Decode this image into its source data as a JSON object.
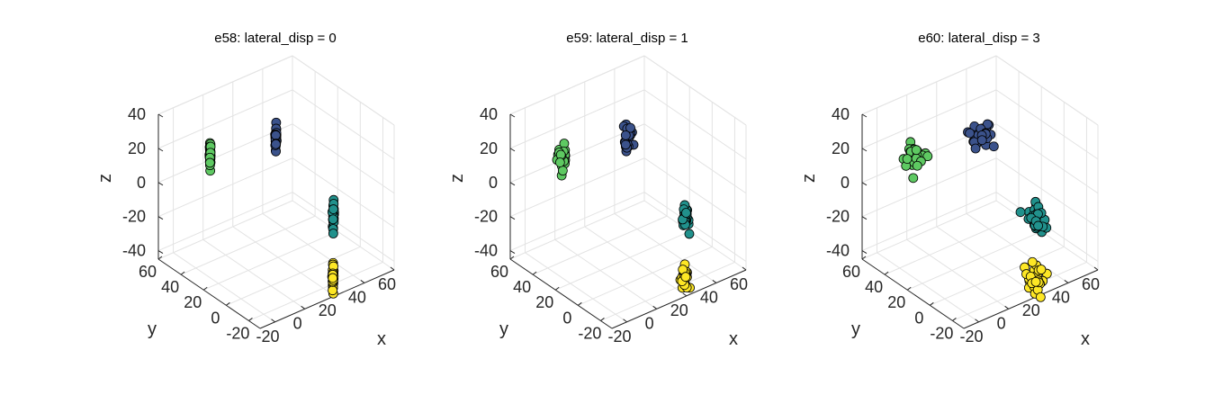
{
  "chart_data": [
    {
      "type": "scatter",
      "title": "e58: lateral_disp = 0",
      "xlabel": "x",
      "ylabel": "y",
      "zlabel": "z",
      "xlim": [
        -30,
        60
      ],
      "ylim": [
        -30,
        60
      ],
      "zlim": [
        -45,
        40
      ],
      "xticks": [
        -20,
        0,
        20,
        40,
        60
      ],
      "xtick_labels": [
        "-20",
        "0",
        "20",
        "40",
        "60"
      ],
      "yticks": [
        -20,
        0,
        20,
        40,
        60
      ],
      "ytick_labels": [
        "-20",
        "0",
        "20",
        "40",
        "60"
      ],
      "zticks": [
        -40,
        -20,
        0,
        20,
        40
      ],
      "ztick_labels": [
        "-40",
        "-20",
        "0",
        "20",
        "40"
      ],
      "grid": true,
      "view": "3d",
      "clusters": [
        {
          "color": "#5ec962",
          "center": [
            -18,
            30,
            25
          ],
          "spread": [
            0.2,
            0.2,
            4
          ],
          "count": 30
        },
        {
          "color": "#3b528b",
          "center": [
            20,
            22,
            25
          ],
          "spread": [
            0.2,
            0.2,
            4
          ],
          "count": 30
        },
        {
          "color": "#21918c",
          "center": [
            42,
            0,
            -20
          ],
          "spread": [
            0.2,
            0.2,
            4
          ],
          "count": 30
        },
        {
          "color": "#fde725",
          "center": [
            25,
            -22,
            -40
          ],
          "spread": [
            0.2,
            0.2,
            4
          ],
          "count": 30
        }
      ]
    },
    {
      "type": "scatter",
      "title": "e59: lateral_disp = 1",
      "xlabel": "x",
      "ylabel": "y",
      "zlabel": "z",
      "xlim": [
        -30,
        60
      ],
      "ylim": [
        -30,
        60
      ],
      "zlim": [
        -45,
        40
      ],
      "xticks": [
        -20,
        0,
        20,
        40,
        60
      ],
      "xtick_labels": [
        "-20",
        "0",
        "20",
        "40",
        "60"
      ],
      "yticks": [
        -20,
        0,
        20,
        40,
        60
      ],
      "ytick_labels": [
        "-20",
        "0",
        "20",
        "40",
        "60"
      ],
      "zticks": [
        -40,
        -20,
        0,
        20,
        40
      ],
      "ztick_labels": [
        "-40",
        "-20",
        "0",
        "20",
        "40"
      ],
      "grid": true,
      "view": "3d",
      "clusters": [
        {
          "color": "#5ec962",
          "center": [
            -18,
            30,
            25
          ],
          "spread": [
            1,
            1,
            4
          ],
          "count": 30
        },
        {
          "color": "#3b528b",
          "center": [
            20,
            22,
            25
          ],
          "spread": [
            1,
            1,
            4
          ],
          "count": 30
        },
        {
          "color": "#21918c",
          "center": [
            42,
            0,
            -20
          ],
          "spread": [
            1,
            1,
            4
          ],
          "count": 30
        },
        {
          "color": "#fde725",
          "center": [
            25,
            -22,
            -40
          ],
          "spread": [
            1,
            1,
            4
          ],
          "count": 30
        }
      ]
    },
    {
      "type": "scatter",
      "title": "e60: lateral_disp = 3",
      "xlabel": "x",
      "ylabel": "y",
      "zlabel": "z",
      "xlim": [
        -30,
        60
      ],
      "ylim": [
        -30,
        60
      ],
      "zlim": [
        -45,
        40
      ],
      "xticks": [
        -20,
        0,
        20,
        40,
        60
      ],
      "xtick_labels": [
        "-20",
        "0",
        "20",
        "40",
        "60"
      ],
      "yticks": [
        -20,
        0,
        20,
        40,
        60
      ],
      "ytick_labels": [
        "-20",
        "0",
        "20",
        "40",
        "60"
      ],
      "zticks": [
        -40,
        -20,
        0,
        20,
        40
      ],
      "ztick_labels": [
        "-40",
        "-20",
        "0",
        "20",
        "40"
      ],
      "grid": true,
      "view": "3d",
      "clusters": [
        {
          "color": "#5ec962",
          "center": [
            -18,
            30,
            25
          ],
          "spread": [
            3,
            3,
            4
          ],
          "count": 30
        },
        {
          "color": "#3b528b",
          "center": [
            20,
            22,
            25
          ],
          "spread": [
            3,
            3,
            4
          ],
          "count": 30
        },
        {
          "color": "#21918c",
          "center": [
            42,
            0,
            -20
          ],
          "spread": [
            3,
            3,
            4
          ],
          "count": 30
        },
        {
          "color": "#fde725",
          "center": [
            25,
            -22,
            -40
          ],
          "spread": [
            3,
            3,
            4
          ],
          "count": 30
        }
      ]
    }
  ]
}
